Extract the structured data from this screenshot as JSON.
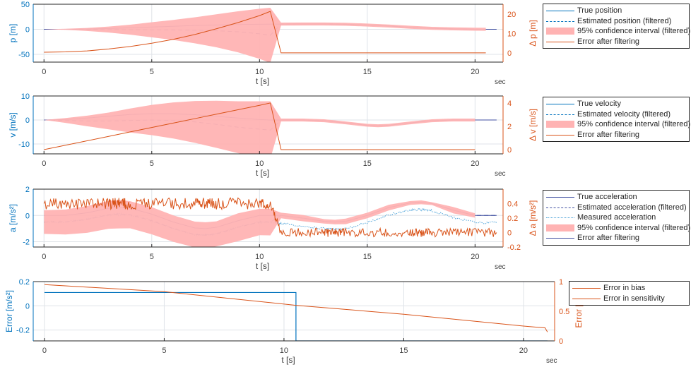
{
  "colors": {
    "left_axis": "#0072BD",
    "right_axis": "#D95319",
    "true": "#3F4EA0",
    "estimate": "#3F4EA0",
    "measured": "#4DA3D9",
    "ci": "#FFB3B3",
    "error": "#D95319",
    "bias": "#0072BD",
    "grid": "#DFE3E8"
  },
  "chart_data": [
    {
      "type": "line",
      "xlabel": "t [s]",
      "xunit": "sec",
      "ylabel": "p [m]",
      "ylabel_right": "Δ p [m]",
      "xlim": [
        -0.5,
        21.3
      ],
      "ylim": [
        -65.5,
        50
      ],
      "ylim_right": [
        -4.8,
        25.2
      ],
      "xticks": [
        0,
        5,
        10,
        15,
        20
      ],
      "yticks": [
        -50,
        0,
        50
      ],
      "yticks_right": [
        0,
        10,
        20
      ],
      "grid": true,
      "legend_position": "outside-right",
      "legend": [
        "True position",
        "Estimated position (filtered)",
        "95% confidence interval (filtered)",
        "Error after filtering"
      ],
      "t": [
        0,
        1,
        2,
        3,
        4,
        5,
        6,
        7,
        8,
        9,
        10,
        10.5,
        11,
        12,
        13,
        14,
        15,
        16,
        17,
        18,
        19,
        20,
        20.5,
        21
      ],
      "series": [
        {
          "name": "True position",
          "role": "true",
          "values": [
            0,
            0,
            0.5,
            1.5,
            3,
            4.5,
            6,
            7.5,
            8.7,
            9.5,
            10,
            10.3,
            10.4,
            10.5,
            10.5,
            10,
            8.5,
            6.5,
            4,
            2,
            0.8,
            0.2,
            0,
            0
          ]
        },
        {
          "name": "Estimated position (filtered)",
          "role": "estimate",
          "values": [
            0,
            0,
            -0.3,
            -0.5,
            -0.8,
            -1,
            -1.3,
            -2,
            -3,
            -5,
            -9,
            -12,
            10.4,
            10.5,
            10.5,
            10,
            8.5,
            6.5,
            4,
            2,
            0.8,
            0.2,
            0,
            null
          ]
        },
        {
          "name": "95% confidence interval (filtered)",
          "role": "ci",
          "halfwidth": [
            0,
            1,
            3,
            6,
            10,
            15,
            20,
            26,
            33,
            41,
            50,
            55,
            3,
            3,
            3,
            3,
            3,
            3,
            3,
            3,
            3,
            3,
            3,
            null
          ]
        },
        {
          "name": "Error after filtering",
          "role": "error",
          "axis": "right",
          "values": [
            0.3,
            0.5,
            1,
            2,
            3.3,
            5,
            7,
            9.5,
            12.5,
            15.7,
            19.3,
            21.5,
            0,
            0,
            0,
            0,
            0,
            0,
            0,
            0,
            0,
            0,
            0,
            null
          ]
        }
      ]
    },
    {
      "type": "line",
      "xlabel": "t [s]",
      "xunit": "sec",
      "ylabel": "v [m/s]",
      "ylabel_right": "Δ v [m/s]",
      "xlim": [
        -0.5,
        21.3
      ],
      "ylim": [
        -14.1,
        10
      ],
      "ylim_right": [
        -0.36,
        4.6
      ],
      "xticks": [
        0,
        5,
        10,
        15,
        20
      ],
      "yticks": [
        -10,
        0,
        10
      ],
      "yticks_right": [
        0,
        2,
        4
      ],
      "grid": true,
      "legend_position": "outside-right",
      "legend": [
        "True velocity",
        "Estimated velocity (filtered)",
        "95% confidence interval (filtered)",
        "Error after filtering"
      ],
      "t": [
        0,
        1,
        2,
        3,
        4,
        5,
        6,
        7,
        8,
        9,
        10,
        10.5,
        11,
        12,
        13,
        14,
        15,
        15.5,
        16,
        17,
        18,
        19,
        20,
        21
      ],
      "series": [
        {
          "name": "True velocity",
          "role": "true",
          "values": [
            0,
            0.2,
            0.8,
            1.6,
            2.3,
            2.6,
            2.6,
            2.2,
            1.5,
            0.8,
            0.2,
            0,
            0,
            0,
            -0.3,
            -1.2,
            -2.2,
            -2.4,
            -2.2,
            -1.2,
            -0.3,
            0,
            0,
            0
          ]
        },
        {
          "name": "Estimated velocity (filtered)",
          "role": "estimate",
          "values": [
            0,
            -0.2,
            -0.4,
            -0.4,
            -0.2,
            0,
            -0.2,
            -0.8,
            -1.8,
            -3,
            -3.8,
            -4.2,
            0,
            0,
            -0.3,
            -1.2,
            -2.2,
            -2.4,
            -2.2,
            -1.2,
            -0.3,
            0,
            0,
            0
          ]
        },
        {
          "name": "95% confidence interval (filtered)",
          "role": "ci",
          "halfwidth": [
            0,
            1,
            2.2,
            3.5,
            5,
            6.3,
            7.5,
            8.7,
            9.8,
            10.8,
            11.6,
            12,
            0.6,
            0.6,
            0.6,
            0.6,
            0.6,
            0.6,
            0.6,
            0.6,
            0.6,
            0.6,
            0.6,
            null
          ]
        },
        {
          "name": "Error after filtering",
          "role": "error",
          "axis": "right",
          "values": [
            0,
            0.38,
            0.76,
            1.14,
            1.52,
            1.9,
            2.28,
            2.66,
            3.04,
            3.42,
            3.8,
            4,
            0,
            0,
            0,
            0,
            0,
            0,
            0,
            0,
            0,
            0,
            0,
            null
          ]
        }
      ]
    },
    {
      "type": "line",
      "xlabel": "t [s]",
      "xunit": "sec",
      "ylabel": "a [m/s²]",
      "ylabel_right": "Δ a [m/s²]",
      "xlim": [
        -0.5,
        21.3
      ],
      "ylim": [
        -2.4,
        2
      ],
      "ylim_right": [
        -0.2,
        0.6
      ],
      "xticks": [
        0,
        5,
        10,
        15,
        20
      ],
      "yticks": [
        -2,
        0,
        2
      ],
      "yticks_right": [
        -0.2,
        0,
        0.2,
        0.4
      ],
      "grid": true,
      "legend_position": "outside-right",
      "legend": [
        "True acceleration",
        "Estimated acceleration (filtered)",
        "Measured acceleration",
        "95% confidence interval (filtered)",
        "Error after filtering"
      ],
      "t": [
        0,
        1,
        2,
        3,
        3.5,
        4,
        5,
        6,
        7,
        7.5,
        8,
        9,
        10,
        10.5,
        11,
        12,
        13,
        13.5,
        14,
        15,
        16,
        17,
        17.5,
        18,
        19,
        20,
        21
      ],
      "series": [
        {
          "name": "True acceleration",
          "role": "true",
          "values": [
            0,
            0,
            0.2,
            0.55,
            0.6,
            0.55,
            0.1,
            -0.5,
            -0.95,
            -1,
            -0.9,
            -0.4,
            0,
            0,
            0,
            -0.2,
            -0.45,
            -0.5,
            -0.45,
            0,
            0.6,
            0.95,
            1,
            0.9,
            0.4,
            0,
            0
          ]
        },
        {
          "name": "Estimated acceleration (filtered)",
          "role": "estimate",
          "values": [
            -0.5,
            -0.5,
            -0.3,
            0.05,
            0.1,
            0.05,
            -0.4,
            -1,
            -1.45,
            -1.5,
            -1.4,
            -0.9,
            -0.5,
            -0.5,
            0,
            -0.2,
            -0.45,
            -0.5,
            -0.45,
            0,
            0.6,
            0.95,
            1,
            0.9,
            0.4,
            0,
            0
          ]
        },
        {
          "name": "Measured acceleration",
          "role": "measured",
          "values": [
            -0.5,
            -0.5,
            -0.3,
            0.05,
            0.1,
            0.05,
            -0.4,
            -1,
            -1.45,
            -1.5,
            -1.4,
            -0.9,
            -0.5,
            -0.5,
            -0.6,
            -0.8,
            -1.0,
            -1.05,
            -1.0,
            -0.55,
            0.05,
            0.4,
            0.45,
            0.35,
            -0.15,
            -0.55,
            -0.55
          ]
        },
        {
          "name": "95% confidence interval (filtered)",
          "role": "ci",
          "halfwidth": [
            0.9,
            0.9,
            0.9,
            0.95,
            0.95,
            0.95,
            0.95,
            0.95,
            0.95,
            0.95,
            0.95,
            0.95,
            0.95,
            0.95,
            0.1,
            0.1,
            0.1,
            0.1,
            0.1,
            0.1,
            0.1,
            0.1,
            0.1,
            0.1,
            0.1,
            0.1,
            null
          ]
        },
        {
          "name": "Error after filtering",
          "role": "error",
          "axis": "right",
          "noisy": true,
          "values": [
            0.4,
            0.4,
            0.4,
            0.4,
            0.4,
            0.4,
            0.4,
            0.4,
            0.4,
            0.4,
            0.4,
            0.4,
            0.4,
            0.4,
            0,
            0,
            0,
            0,
            0,
            0,
            0,
            0,
            0,
            0,
            0,
            0,
            0
          ]
        }
      ]
    },
    {
      "type": "line",
      "xlabel": "t [s]",
      "xunit": "sec",
      "ylabel": "Error [m/s²]",
      "ylabel_right": "Error [%]",
      "xlim": [
        -0.47,
        21.3
      ],
      "ylim": [
        -0.29,
        0.2
      ],
      "ylim_right": [
        0,
        1
      ],
      "xticks": [
        0,
        5,
        10,
        15,
        20
      ],
      "yticks": [
        -0.2,
        0,
        0.2
      ],
      "yticks_right": [
        0,
        0.5,
        1
      ],
      "grid": true,
      "legend_position": "outside-right",
      "legend": [
        "Error in bias",
        "Error in sensitivity"
      ],
      "t": [
        0,
        10.5,
        10.5,
        21
      ],
      "series": [
        {
          "name": "Error in bias",
          "role": "bias",
          "values": [
            0.11,
            0.11,
            -0.29,
            -0.29
          ]
        },
        {
          "name": "Error in sensitivity",
          "role": "error",
          "axis": "right",
          "t": [
            0,
            5,
            10.5,
            15,
            20,
            20.9,
            21
          ],
          "values": [
            0.95,
            0.83,
            0.6,
            0.45,
            0.25,
            0.22,
            0.15
          ]
        }
      ]
    }
  ]
}
